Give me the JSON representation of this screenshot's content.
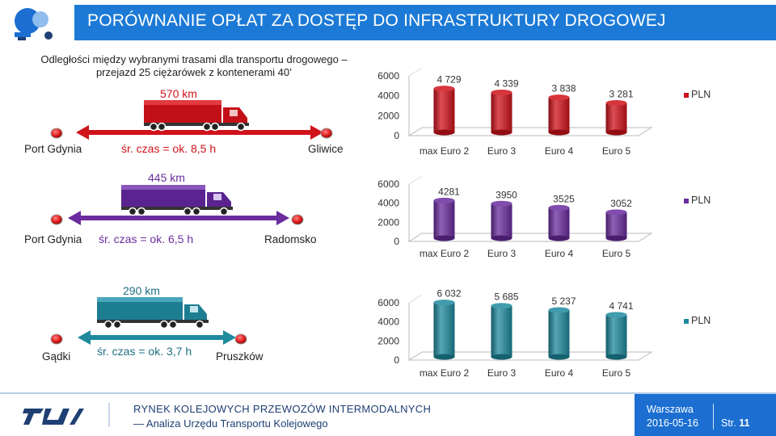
{
  "header": {
    "title": "PORÓWNANIE OPŁAT ZA DOSTĘP DO INFRASTRUKTURY DROGOWEJ"
  },
  "intro": {
    "line1": "Odległości między wybranymi trasami dla transportu drogowego –",
    "line2": "przejazd 25 ciężarówek z kontenerami 40’"
  },
  "routes": [
    {
      "from": "Port Gdynia",
      "to": "Gliwice",
      "distance": "570 km",
      "time": "śr. czas = ok. 8,5 h",
      "color": "#d0121b"
    },
    {
      "from": "Port Gdynia",
      "to": "Radomsko",
      "distance": "445 km",
      "time": "śr. czas = ok. 6,5 h",
      "color": "#6a2c9e"
    },
    {
      "from": "Gądki",
      "to": "Pruszków",
      "distance": "290 km",
      "time": "śr. czas = ok. 3,7 h",
      "color": "#1f8a9e"
    }
  ],
  "chart_data": [
    {
      "type": "bar",
      "categories": [
        "max Euro 2",
        "Euro 3",
        "Euro 4",
        "Euro 5"
      ],
      "values": [
        4729,
        4339,
        3838,
        3281
      ],
      "value_labels": [
        "4 729",
        "4 339",
        "3 838",
        "3 281"
      ],
      "yticks": [
        "0",
        "2000",
        "4000",
        "6000"
      ],
      "ylim": [
        0,
        6000
      ],
      "legend": "PLN",
      "color": "#d0121b"
    },
    {
      "type": "bar",
      "categories": [
        "max Euro 2",
        "Euro 3",
        "Euro 4",
        "Euro 5"
      ],
      "values": [
        4281,
        3950,
        3525,
        3052
      ],
      "value_labels": [
        "4281",
        "3950",
        "3525",
        "3052"
      ],
      "yticks": [
        "0",
        "2000",
        "4000",
        "6000"
      ],
      "ylim": [
        0,
        6000
      ],
      "legend": "PLN",
      "color": "#6a2c9e"
    },
    {
      "type": "bar",
      "categories": [
        "max Euro 2",
        "Euro 3",
        "Euro 4",
        "Euro 5"
      ],
      "values": [
        6032,
        5685,
        5237,
        4741
      ],
      "value_labels": [
        "6 032",
        "5 685",
        "5 237",
        "4 741"
      ],
      "yticks": [
        "0",
        "2000",
        "4000",
        "6000"
      ],
      "ylim": [
        0,
        6000
      ],
      "legend": "PLN",
      "color": "#1f8a9e"
    }
  ],
  "footer": {
    "line1": "RYNEK KOLEJOWYCH PRZEWOZÓW INTERMODALNYCH",
    "line2": "— Analiza Urzędu Transportu Kolejowego",
    "city": "Warszawa",
    "date": "2016-05-16",
    "page_label": "Str.",
    "page_number": "11"
  },
  "icons": {
    "header_logo": "speech-bubble-logo-icon",
    "footer_logo": "utk-logo-icon",
    "truck": "truck-icon",
    "marker": "location-marker-icon"
  }
}
